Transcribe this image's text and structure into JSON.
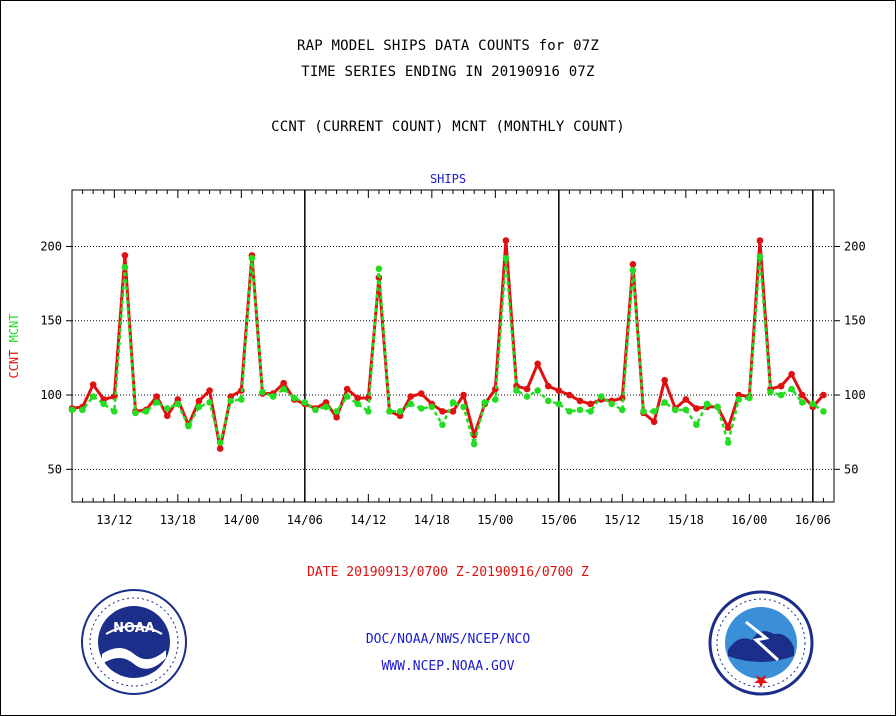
{
  "header": {
    "line1": "RAP MODEL SHIPS DATA COUNTS for 07Z",
    "line2": "TIME SERIES ENDING IN 20190916 07Z",
    "line3": "CCNT (CURRENT COUNT) MCNT (MONTHLY COUNT)"
  },
  "footer": {
    "date_range": "DATE 20190913/0700 Z-20190916/0700 Z",
    "org": "DOC/NOAA/NWS/NCEP/NCO",
    "url": "WWW.NCEP.NOAA.GOV"
  },
  "logos": {
    "noaa": {
      "text": "NOAA",
      "ring_text": "NATIONAL OCEANIC AND ATMOSPHERIC ADMINISTRATION · U.S. DEPARTMENT OF COMMERCE"
    },
    "nws": {
      "ring_text": "NATIONAL WEATHER SERVICE"
    }
  },
  "colors": {
    "ccnt": "#e01010",
    "mcnt": "#22dd22",
    "title": "#1a1ad0"
  },
  "chart_data": {
    "type": "line",
    "title": "SHIPS",
    "ylabel_series": [
      "CCNT",
      "MCNT"
    ],
    "ylim": [
      28,
      238
    ],
    "yticks": [
      50,
      100,
      150,
      200
    ],
    "grid": "horizontal dotted",
    "xlim": [
      2,
      74
    ],
    "x_ticks": [
      {
        "x": 6,
        "label": "13/12"
      },
      {
        "x": 12,
        "label": "13/18"
      },
      {
        "x": 18,
        "label": "14/00"
      },
      {
        "x": 24,
        "label": "14/06"
      },
      {
        "x": 30,
        "label": "14/12"
      },
      {
        "x": 36,
        "label": "14/18"
      },
      {
        "x": 42,
        "label": "15/00"
      },
      {
        "x": 48,
        "label": "15/06"
      },
      {
        "x": 54,
        "label": "15/12"
      },
      {
        "x": 60,
        "label": "15/18"
      },
      {
        "x": 66,
        "label": "16/00"
      },
      {
        "x": 72,
        "label": "16/06"
      }
    ],
    "day_separators": [
      24,
      48,
      72
    ],
    "series": [
      {
        "name": "CCNT",
        "x": [
          2,
          3,
          4,
          5,
          6,
          7,
          8,
          9,
          10,
          11,
          12,
          13,
          14,
          15,
          16,
          17,
          18,
          19,
          20,
          21,
          22,
          23,
          24,
          25,
          26,
          27,
          28,
          29,
          30,
          31,
          32,
          33,
          34,
          35,
          36,
          37,
          38,
          39,
          40,
          41,
          42,
          43,
          44,
          45,
          46,
          47,
          48,
          49,
          50,
          51,
          52,
          53,
          54,
          55,
          56,
          57,
          58,
          59,
          60,
          61,
          62,
          63,
          64,
          65,
          66,
          67,
          68,
          69,
          70,
          71,
          72,
          73
        ],
        "values": [
          91,
          92,
          107,
          97,
          99,
          194,
          89,
          90,
          99,
          86,
          97,
          80,
          96,
          103,
          64,
          99,
          103,
          194,
          101,
          101,
          108,
          97,
          94,
          91,
          95,
          85,
          104,
          98,
          98,
          179,
          89,
          86,
          99,
          101,
          94,
          89,
          89,
          100,
          73,
          94,
          104,
          204,
          106,
          104,
          121,
          106,
          103,
          100,
          96,
          94,
          97,
          96,
          98,
          188,
          88,
          82,
          110,
          91,
          97,
          91,
          92,
          92,
          78,
          100,
          99,
          204,
          104,
          106,
          114,
          100,
          92,
          100
        ]
      },
      {
        "name": "MCNT",
        "x": [
          2,
          3,
          4,
          5,
          6,
          7,
          8,
          9,
          10,
          11,
          12,
          13,
          14,
          15,
          16,
          17,
          18,
          19,
          20,
          21,
          22,
          23,
          24,
          25,
          26,
          27,
          28,
          29,
          30,
          31,
          32,
          33,
          34,
          35,
          36,
          37,
          38,
          39,
          40,
          41,
          42,
          43,
          44,
          45,
          46,
          47,
          48,
          49,
          50,
          51,
          52,
          53,
          54,
          55,
          56,
          57,
          58,
          59,
          60,
          61,
          62,
          63,
          64,
          65,
          66,
          67,
          68,
          69,
          70,
          71,
          72,
          73
        ],
        "values": [
          90,
          90,
          99,
          94,
          89,
          186,
          88,
          89,
          95,
          91,
          94,
          79,
          92,
          95,
          68,
          96,
          97,
          192,
          102,
          99,
          104,
          98,
          95,
          90,
          92,
          89,
          99,
          94,
          89,
          185,
          89,
          89,
          94,
          91,
          92,
          80,
          95,
          92,
          67,
          95,
          97,
          192,
          103,
          99,
          103,
          96,
          94,
          89,
          90,
          89,
          99,
          94,
          90,
          184,
          89,
          89,
          95,
          90,
          90,
          80,
          94,
          92,
          68,
          97,
          98,
          193,
          102,
          100,
          104,
          95,
          94,
          89
        ]
      }
    ]
  }
}
